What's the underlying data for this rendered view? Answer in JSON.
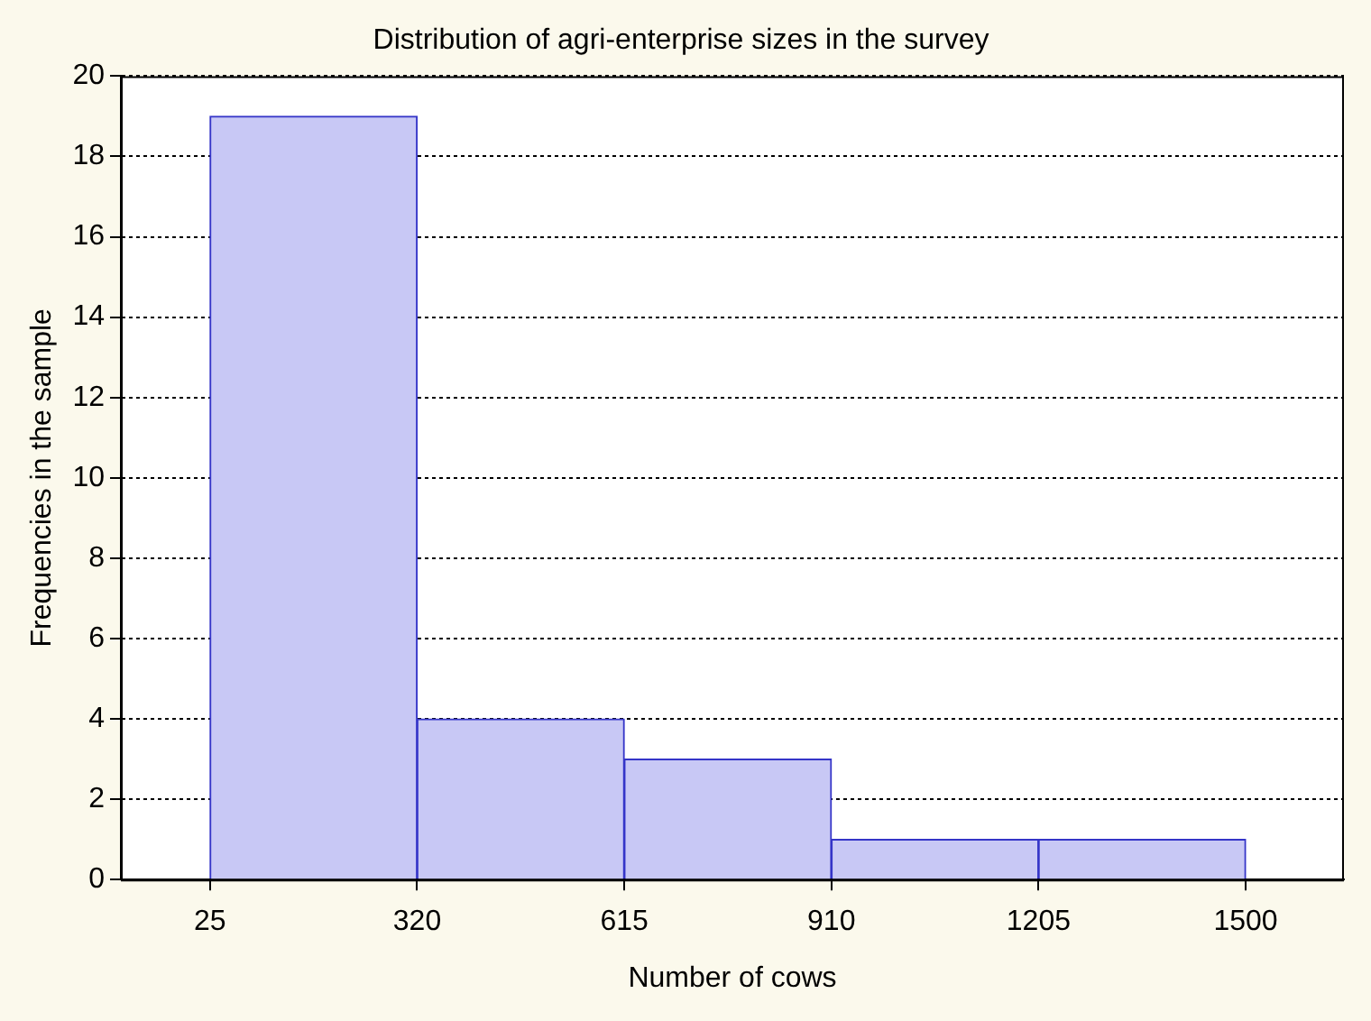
{
  "chart_data": {
    "type": "histogram",
    "title": "Distribution of agri-enterprise sizes in the survey",
    "xlabel": "Number of cows",
    "ylabel": "Frequencies in the sample",
    "bins": [
      25,
      320,
      615,
      910,
      1205,
      1500
    ],
    "values": [
      19,
      4,
      3,
      1,
      1
    ],
    "color": "#c8c8f5",
    "xlim": [
      -102,
      1640
    ],
    "xticks": [
      25,
      320,
      615,
      910,
      1205,
      1500
    ],
    "ylim": [
      0,
      20
    ],
    "yticks": [
      0,
      2,
      4,
      6,
      8,
      10,
      12,
      14,
      16,
      18,
      20
    ],
    "grid": "y"
  }
}
